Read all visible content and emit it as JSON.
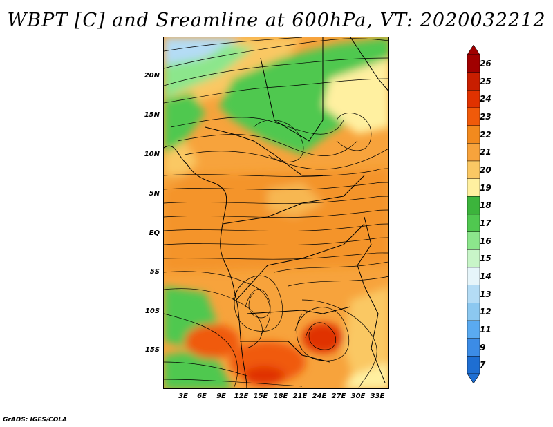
{
  "title": "WBPT [C] and Sreamline at 600hPa, VT: 2020032212",
  "footer": "GrADS: IGES/COLA",
  "lat_labels": [
    "20N",
    "15N",
    "10N",
    "5N",
    "EQ",
    "5S",
    "10S",
    "15S"
  ],
  "lon_labels": [
    "3E",
    "6E",
    "9E",
    "12E",
    "15E",
    "18E",
    "21E",
    "24E",
    "27E",
    "30E",
    "33E"
  ],
  "colorbar": {
    "levels": [
      "26",
      "25",
      "24",
      "23",
      "22",
      "21",
      "20",
      "19",
      "18",
      "17",
      "16",
      "15",
      "14",
      "13",
      "12",
      "11",
      "9",
      "7"
    ],
    "colors": [
      "#a00000",
      "#c81e00",
      "#e03200",
      "#f05a0a",
      "#f28a1e",
      "#f7a33c",
      "#fac864",
      "#fff0a0",
      "#3cb43c",
      "#50c850",
      "#8ce68c",
      "#c8f5c8",
      "#e6f5fa",
      "#b4dcf5",
      "#8cc8f0",
      "#5aaaf0",
      "#3c8ce6",
      "#1e6ed2"
    ]
  },
  "field_colors": {
    "orange": "#f7a33c",
    "deep_orange": "#f28a1e",
    "hot": "#e03200",
    "green": "#50c850",
    "light_green": "#8ce68c",
    "yellow": "#fac864",
    "pale_yellow": "#fff0a0",
    "light_blue": "#b4dcf5"
  }
}
